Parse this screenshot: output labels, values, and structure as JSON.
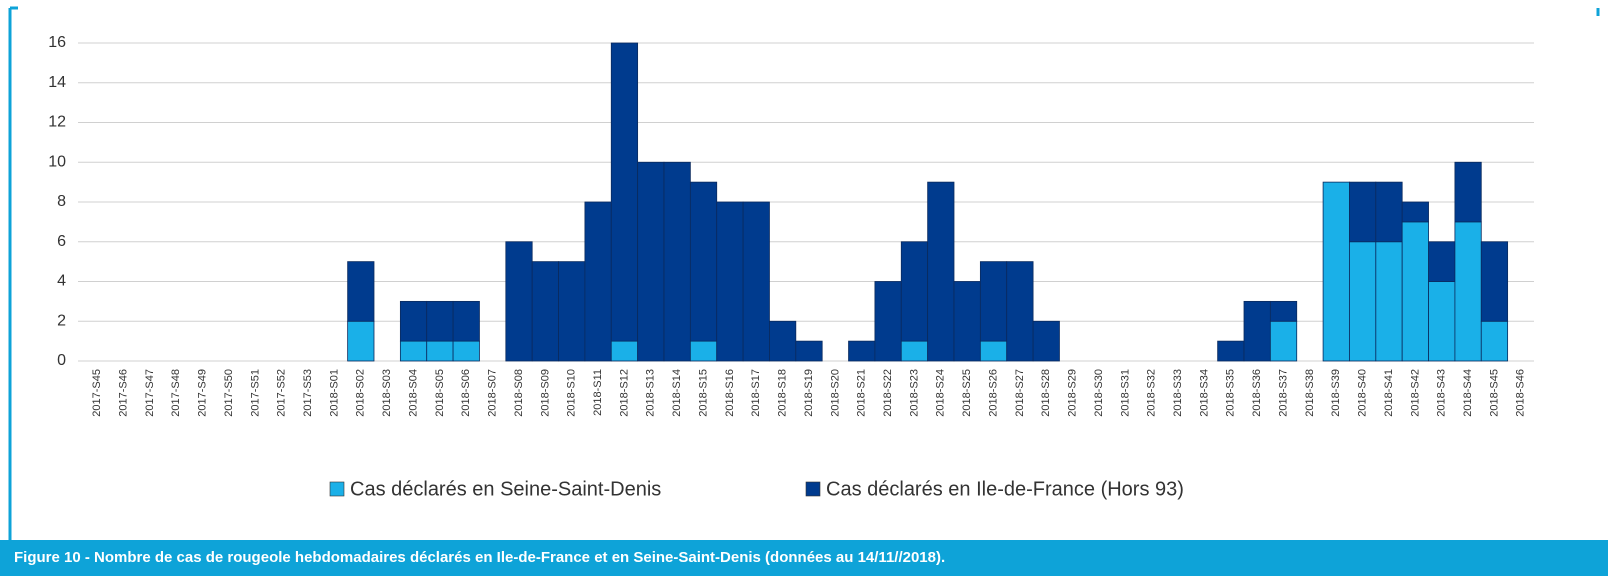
{
  "chart_data": {
    "type": "stacked-bar",
    "caption": "Figure 10 -  Nombre de cas de rougeole hebdomadaires déclarés en Ile-de-France et en Seine-Saint-Denis (données au 14/11//2018).",
    "categories": [
      "2017-S45",
      "2017-S46",
      "2017-S47",
      "2017-S48",
      "2017-S49",
      "2017-S50",
      "2017-S51",
      "2017-S52",
      "2017-S53",
      "2018-S01",
      "2018-S02",
      "2018-S03",
      "2018-S04",
      "2018-S05",
      "2018-S06",
      "2018-S07",
      "2018-S08",
      "2018-S09",
      "2018-S10",
      "2018-S11",
      "2018-S12",
      "2018-S13",
      "2018-S14",
      "2018-S15",
      "2018-S16",
      "2018-S17",
      "2018-S18",
      "2018-S19",
      "2018-S20",
      "2018-S21",
      "2018-S22",
      "2018-S23",
      "2018-S24",
      "2018-S25",
      "2018-S26",
      "2018-S27",
      "2018-S28",
      "2018-S29",
      "2018-S30",
      "2018-S31",
      "2018-S32",
      "2018-S33",
      "2018-S34",
      "2018-S35",
      "2018-S36",
      "2018-S37",
      "2018-S38",
      "2018-S39",
      "2018-S40",
      "2018-S41",
      "2018-S42",
      "2018-S43",
      "2018-S44",
      "2018-S45",
      "2018-S46"
    ],
    "series": [
      {
        "name": "Cas déclarés en Seine-Saint-Denis",
        "color": "#1ab0e8",
        "values": [
          0,
          0,
          0,
          0,
          0,
          0,
          0,
          0,
          0,
          0,
          2,
          0,
          1,
          1,
          1,
          0,
          0,
          0,
          0,
          0,
          1,
          0,
          0,
          1,
          0,
          0,
          0,
          0,
          0,
          0,
          0,
          1,
          0,
          0,
          1,
          0,
          0,
          0,
          0,
          0,
          0,
          0,
          0,
          0,
          0,
          2,
          0,
          9,
          6,
          6,
          7,
          4,
          7,
          2,
          0
        ]
      },
      {
        "name": "Cas déclarés en Ile-de-France (Hors 93)",
        "color": "#003b8e",
        "values": [
          0,
          0,
          0,
          0,
          0,
          0,
          0,
          0,
          0,
          0,
          3,
          0,
          2,
          2,
          2,
          0,
          6,
          5,
          5,
          8,
          15,
          10,
          10,
          8,
          8,
          8,
          2,
          1,
          0,
          1,
          4,
          5,
          9,
          4,
          4,
          5,
          2,
          0,
          0,
          0,
          0,
          0,
          0,
          1,
          3,
          1,
          0,
          0,
          3,
          3,
          1,
          2,
          3,
          4,
          0
        ]
      }
    ],
    "ylim": [
      0,
      16
    ],
    "yticks": [
      0,
      2,
      4,
      6,
      8,
      10,
      12,
      14,
      16
    ],
    "grid": true
  }
}
